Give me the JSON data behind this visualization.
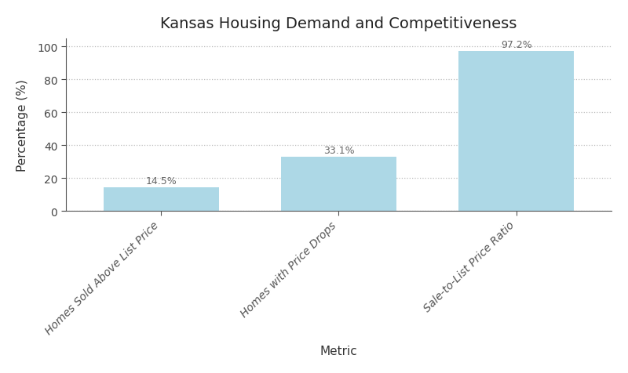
{
  "title": "Kansas Housing Demand and Competitiveness",
  "categories": [
    "Homes Sold Above List Price",
    "Homes with Price Drops",
    "Sale-to-List Price Ratio"
  ],
  "values": [
    14.5,
    33.1,
    97.2
  ],
  "bar_color": "#ADD8E6",
  "xlabel": "Metric",
  "ylabel": "Percentage (%)",
  "ylim": [
    0,
    105
  ],
  "yticks": [
    0,
    20,
    40,
    60,
    80,
    100
  ],
  "grid_color": "#bbbbbb",
  "grid_linestyle": ":",
  "label_color": "#666666",
  "title_fontsize": 14,
  "axis_label_fontsize": 11,
  "tick_label_fontsize": 10,
  "value_label_fontsize": 9,
  "background_color": "#ffffff",
  "bar_width": 0.65
}
